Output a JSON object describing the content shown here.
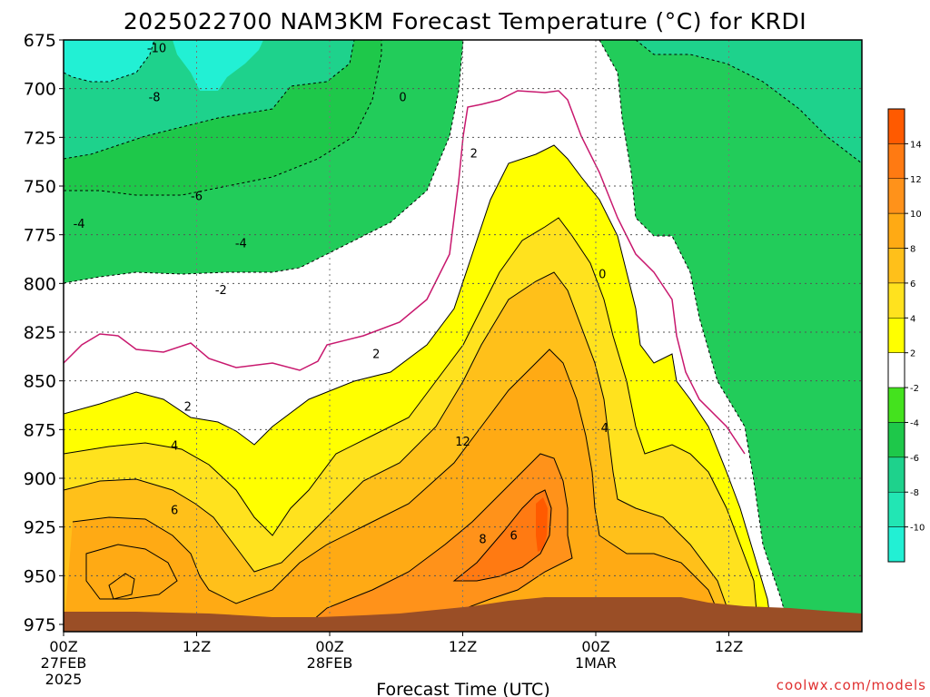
{
  "chart_data": {
    "type": "contour-filled time-height cross-section",
    "title": "2025022700 NAM3KM Forecast Temperature (°C) for KRDI",
    "xlabel": "Forecast Time (UTC)",
    "ylabel": "",
    "watermark": "coolwx.com/models",
    "x_range_hours": [
      0,
      36
    ],
    "y_range_hpa": [
      675,
      980
    ],
    "y_ticks": [
      675,
      700,
      725,
      750,
      775,
      800,
      825,
      850,
      875,
      900,
      925,
      950,
      975
    ],
    "y_tick_labels": [
      "675",
      "700",
      "725",
      "750",
      "775",
      "800",
      "825",
      "850",
      "875",
      "900",
      "925",
      "950",
      "975"
    ],
    "x_ticks": [
      {
        "hour": 0,
        "lines": [
          "00Z",
          "27FEB",
          "2025"
        ]
      },
      {
        "hour": 6,
        "lines": [
          "12Z"
        ]
      },
      {
        "hour": 12,
        "lines": [
          "00Z",
          "28FEB"
        ]
      },
      {
        "hour": 18,
        "lines": [
          "12Z"
        ]
      },
      {
        "hour": 24,
        "lines": [
          "00Z",
          "1MAR"
        ]
      },
      {
        "hour": 30,
        "lines": [
          "12Z"
        ]
      }
    ],
    "grid": true,
    "legend": {
      "position": "right",
      "labels": [
        "14",
        "12",
        "10",
        "8",
        "6",
        "4",
        "2",
        "-2",
        "-4",
        "-6",
        "-8",
        "-10"
      ],
      "colors": [
        "#ff5a00",
        "#ff7a12",
        "#ff921a",
        "#ffaa14",
        "#ffc01a",
        "#ffe21e",
        "#ffff00",
        "#ffffff",
        "#44e21e",
        "#1ec84a",
        "#1ed28c",
        "#22e6b4",
        "#22f0d4"
      ]
    },
    "contour_labels": [
      {
        "text": "-10",
        "h": 4.2,
        "p": 679
      },
      {
        "text": "-8",
        "h": 4.1,
        "p": 704
      },
      {
        "text": "-6",
        "h": 6.0,
        "p": 755
      },
      {
        "text": "-4",
        "h": 0.7,
        "p": 769
      },
      {
        "text": "-4",
        "h": 8.0,
        "p": 779
      },
      {
        "text": "-2",
        "h": 7.1,
        "p": 803
      },
      {
        "text": "0",
        "h": 15.3,
        "p": 704
      },
      {
        "text": "0",
        "h": 24.3,
        "p": 795
      },
      {
        "text": "2",
        "h": 18.5,
        "p": 733
      },
      {
        "text": "2",
        "h": 14.1,
        "p": 836
      },
      {
        "text": "2",
        "h": 5.6,
        "p": 863
      },
      {
        "text": "4",
        "h": 5.0,
        "p": 883
      },
      {
        "text": "4",
        "h": 24.4,
        "p": 874
      },
      {
        "text": "6",
        "h": 5.0,
        "p": 916
      },
      {
        "text": "6",
        "h": 20.3,
        "p": 929
      },
      {
        "text": "8",
        "h": 18.9,
        "p": 931
      },
      {
        "text": "12",
        "h": 18.0,
        "p": 881
      }
    ]
  }
}
